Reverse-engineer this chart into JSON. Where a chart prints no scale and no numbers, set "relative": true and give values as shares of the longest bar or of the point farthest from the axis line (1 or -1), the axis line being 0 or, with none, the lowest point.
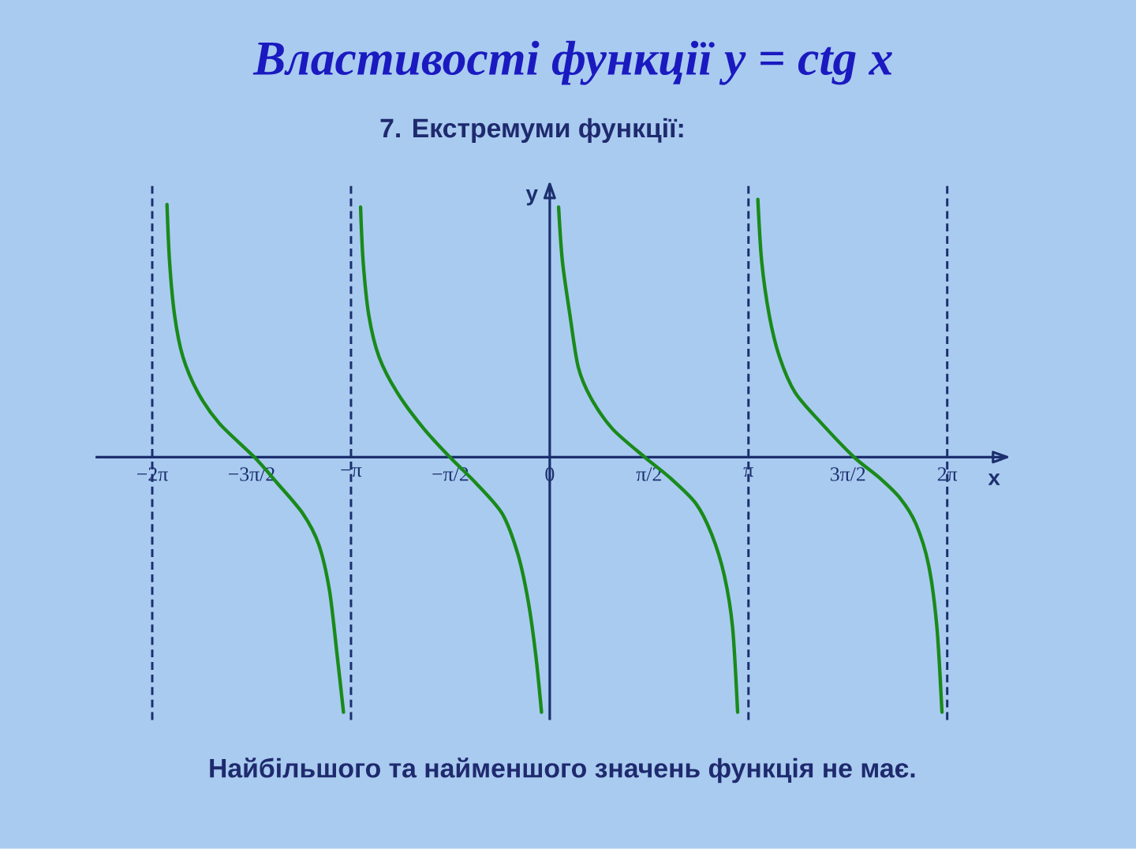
{
  "chart_data": {
    "type": "line",
    "title": "Властивості функції y = ctg x",
    "subtitle": "7. Екстремуми функції:",
    "xlabel": "x",
    "ylabel": "y",
    "relative": true,
    "xlim": [
      -7.18,
      7.23
    ],
    "xticks": [
      {
        "value": -6.2832,
        "label": "−2π"
      },
      {
        "value": -4.7124,
        "label": "−3π/2"
      },
      {
        "value": -3.1416,
        "label": "−π"
      },
      {
        "value": -1.5708,
        "label": "−π/2"
      },
      0,
      {
        "value": 1.5708,
        "label": "π/2"
      },
      {
        "value": 3.1416,
        "label": "π"
      },
      {
        "value": 4.7124,
        "label": "3π/2"
      },
      {
        "value": 6.2832,
        "label": "2π"
      }
    ],
    "series": [
      {
        "color": "#1a8a1a",
        "x": [
          -6.05,
          -6.01,
          -5.93,
          -5.8,
          -5.56,
          -5.22,
          -4.67,
          -4.31,
          -3.9,
          -3.65,
          -3.48,
          -3.36,
          -3.26
        ],
        "values": [
          0.98,
          0.76,
          0.55,
          0.39,
          0.25,
          0.13,
          0,
          -0.1,
          -0.22,
          -0.34,
          -0.52,
          -0.77,
          -0.99
        ]
      },
      {
        "color": "#1a8a1a",
        "x": [
          -2.99,
          -2.95,
          -2.86,
          -2.7,
          -2.41,
          -1.99,
          -1.58,
          -1.17,
          -0.75,
          -0.5,
          -0.34,
          -0.22,
          -0.13
        ],
        "values": [
          0.97,
          0.76,
          0.55,
          0.39,
          0.25,
          0.11,
          0,
          -0.1,
          -0.22,
          -0.38,
          -0.56,
          -0.77,
          -0.99
        ]
      },
      {
        "color": "#1a8a1a",
        "x": [
          0.14,
          0.2,
          0.32,
          0.45,
          0.65,
          0.99,
          1.5,
          1.9,
          2.31,
          2.56,
          2.76,
          2.89,
          2.97
        ],
        "values": [
          0.97,
          0.76,
          0.55,
          0.35,
          0.23,
          0.11,
          0,
          -0.08,
          -0.18,
          -0.3,
          -0.46,
          -0.66,
          -0.99
        ]
      },
      {
        "color": "#1a8a1a",
        "x": [
          3.29,
          3.35,
          3.47,
          3.63,
          3.88,
          4.3,
          4.81,
          5.21,
          5.54,
          5.79,
          5.99,
          6.12,
          6.2
        ],
        "values": [
          1.0,
          0.76,
          0.55,
          0.39,
          0.25,
          0.13,
          0,
          -0.08,
          -0.16,
          -0.26,
          -0.42,
          -0.66,
          -0.99
        ]
      }
    ],
    "ref_lines": [
      {
        "axis": "x",
        "value": -6.2832,
        "color": "#1c2f6e",
        "line_style": "dashed"
      },
      {
        "axis": "x",
        "value": -3.1416,
        "color": "#1c2f6e",
        "line_style": "dashed"
      },
      {
        "axis": "x",
        "value": 3.1416,
        "color": "#1c2f6e",
        "line_style": "dashed"
      },
      {
        "axis": "x",
        "value": 6.2832,
        "color": "#1c2f6e",
        "line_style": "dashed"
      }
    ],
    "annotations": [
      "Найбільшого та найменшого значень функція не має."
    ]
  }
}
